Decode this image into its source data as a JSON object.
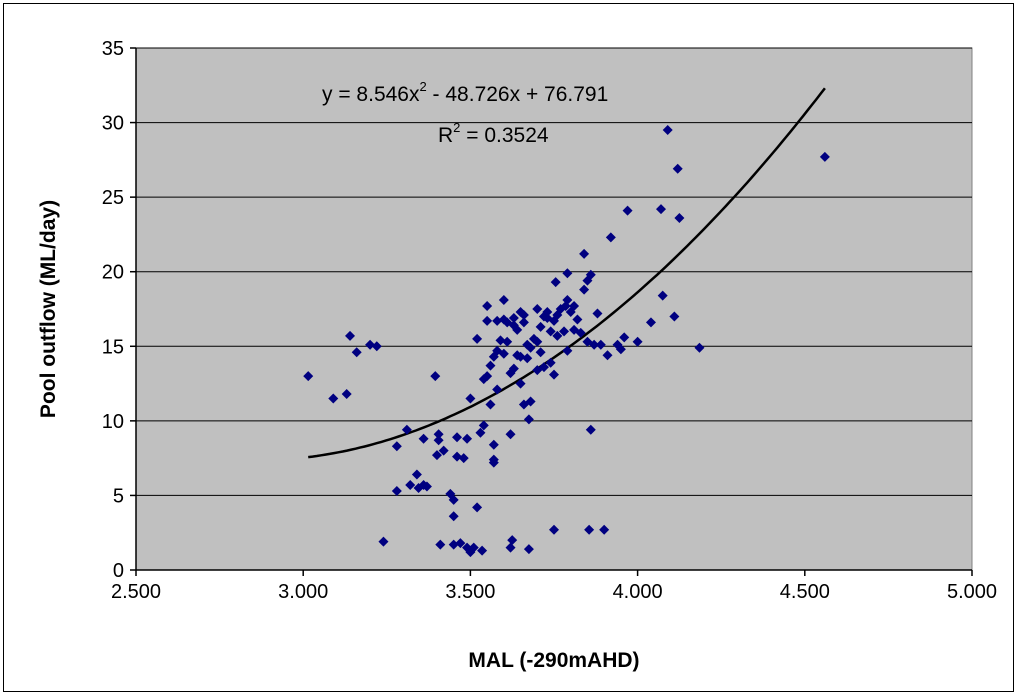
{
  "chart_data": {
    "type": "scatter",
    "title": "",
    "xlabel": "MAL (-290mAHD)",
    "ylabel": "Pool outflow (ML/day)",
    "xlim": [
      2.5,
      5.0
    ],
    "ylim": [
      0,
      35
    ],
    "x_ticks": [
      "2.500",
      "3.000",
      "3.500",
      "4.000",
      "4.500",
      "5.000"
    ],
    "y_ticks": [
      "0",
      "5",
      "10",
      "15",
      "20",
      "25",
      "30",
      "35"
    ],
    "grid": "horizontal",
    "plot_background": "#C0C0C0",
    "marker_color": "#000080",
    "trendline": {
      "type": "polynomial",
      "coefficients": [
        8.546,
        -48.726,
        76.791
      ],
      "x_range": [
        3.015,
        4.56
      ],
      "color": "#000000"
    },
    "annotations": {
      "equation_prefix": "y = 8.546x",
      "equation_exp": "2",
      "equation_suffix": " - 48.726x + 76.791",
      "r2_prefix": "R",
      "r2_exp": "2",
      "r2_suffix": " = 0.3524"
    },
    "points": [
      [
        3.015,
        13.0
      ],
      [
        3.09,
        11.5
      ],
      [
        3.13,
        11.8
      ],
      [
        3.14,
        15.7
      ],
      [
        3.16,
        14.6
      ],
      [
        3.2,
        15.1
      ],
      [
        3.22,
        15.0
      ],
      [
        3.24,
        1.9
      ],
      [
        3.28,
        5.3
      ],
      [
        3.28,
        8.3
      ],
      [
        3.31,
        9.4
      ],
      [
        3.32,
        5.7
      ],
      [
        3.34,
        6.4
      ],
      [
        3.345,
        5.5
      ],
      [
        3.36,
        5.7
      ],
      [
        3.36,
        8.8
      ],
      [
        3.37,
        5.6
      ],
      [
        3.395,
        13.0
      ],
      [
        3.4,
        7.7
      ],
      [
        3.405,
        8.7
      ],
      [
        3.405,
        9.1
      ],
      [
        3.41,
        1.7
      ],
      [
        3.42,
        8.0
      ],
      [
        3.44,
        5.1
      ],
      [
        3.45,
        3.6
      ],
      [
        3.45,
        4.7
      ],
      [
        3.45,
        1.7
      ],
      [
        3.46,
        7.6
      ],
      [
        3.46,
        8.9
      ],
      [
        3.47,
        1.8
      ],
      [
        3.48,
        7.5
      ],
      [
        3.49,
        8.8
      ],
      [
        3.49,
        1.5
      ],
      [
        3.5,
        1.2
      ],
      [
        3.5,
        11.5
      ],
      [
        3.51,
        1.5
      ],
      [
        3.52,
        4.2
      ],
      [
        3.52,
        15.5
      ],
      [
        3.53,
        9.2
      ],
      [
        3.535,
        1.3
      ],
      [
        3.54,
        12.8
      ],
      [
        3.54,
        9.7
      ],
      [
        3.55,
        13.0
      ],
      [
        3.55,
        16.7
      ],
      [
        3.55,
        17.7
      ],
      [
        3.56,
        11.1
      ],
      [
        3.56,
        13.7
      ],
      [
        3.57,
        14.3
      ],
      [
        3.57,
        8.4
      ],
      [
        3.57,
        7.4
      ],
      [
        3.57,
        7.2
      ],
      [
        3.58,
        14.7
      ],
      [
        3.58,
        12.1
      ],
      [
        3.58,
        16.7
      ],
      [
        3.59,
        15.4
      ],
      [
        3.6,
        14.5
      ],
      [
        3.6,
        16.8
      ],
      [
        3.6,
        18.1
      ],
      [
        3.61,
        15.3
      ],
      [
        3.61,
        16.6
      ],
      [
        3.62,
        13.2
      ],
      [
        3.62,
        9.1
      ],
      [
        3.62,
        1.5
      ],
      [
        3.625,
        2.0
      ],
      [
        3.63,
        13.5
      ],
      [
        3.63,
        16.4
      ],
      [
        3.63,
        16.9
      ],
      [
        3.64,
        14.4
      ],
      [
        3.64,
        16.1
      ],
      [
        3.65,
        14.3
      ],
      [
        3.65,
        17.3
      ],
      [
        3.65,
        12.5
      ],
      [
        3.66,
        11.1
      ],
      [
        3.66,
        16.6
      ],
      [
        3.66,
        17.1
      ],
      [
        3.67,
        15.1
      ],
      [
        3.67,
        14.2
      ],
      [
        3.675,
        10.1
      ],
      [
        3.675,
        1.4
      ],
      [
        3.68,
        11.3
      ],
      [
        3.68,
        14.9
      ],
      [
        3.69,
        15.5
      ],
      [
        3.7,
        17.5
      ],
      [
        3.7,
        13.4
      ],
      [
        3.7,
        15.3
      ],
      [
        3.71,
        16.3
      ],
      [
        3.71,
        14.6
      ],
      [
        3.72,
        17.0
      ],
      [
        3.72,
        13.6
      ],
      [
        3.73,
        16.9
      ],
      [
        3.73,
        17.3
      ],
      [
        3.74,
        16.0
      ],
      [
        3.74,
        13.9
      ],
      [
        3.75,
        16.7
      ],
      [
        3.75,
        13.1
      ],
      [
        3.75,
        2.7
      ],
      [
        3.755,
        19.3
      ],
      [
        3.76,
        15.7
      ],
      [
        3.76,
        17.1
      ],
      [
        3.77,
        17.5
      ],
      [
        3.78,
        16.0
      ],
      [
        3.785,
        17.7
      ],
      [
        3.79,
        18.1
      ],
      [
        3.79,
        19.9
      ],
      [
        3.79,
        14.7
      ],
      [
        3.8,
        17.3
      ],
      [
        3.81,
        17.7
      ],
      [
        3.81,
        16.1
      ],
      [
        3.82,
        16.8
      ],
      [
        3.83,
        15.9
      ],
      [
        3.84,
        18.8
      ],
      [
        3.84,
        21.2
      ],
      [
        3.85,
        15.3
      ],
      [
        3.85,
        19.4
      ],
      [
        3.855,
        2.7
      ],
      [
        3.86,
        19.8
      ],
      [
        3.86,
        9.4
      ],
      [
        3.87,
        15.1
      ],
      [
        3.88,
        17.2
      ],
      [
        3.89,
        15.1
      ],
      [
        3.9,
        2.7
      ],
      [
        3.91,
        14.4
      ],
      [
        3.92,
        22.3
      ],
      [
        3.94,
        15.1
      ],
      [
        3.95,
        14.8
      ],
      [
        3.96,
        15.6
      ],
      [
        3.97,
        24.1
      ],
      [
        4.0,
        15.3
      ],
      [
        4.04,
        16.6
      ],
      [
        4.07,
        24.2
      ],
      [
        4.075,
        18.4
      ],
      [
        4.09,
        29.5
      ],
      [
        4.11,
        17.0
      ],
      [
        4.12,
        26.9
      ],
      [
        4.125,
        23.6
      ],
      [
        4.185,
        14.9
      ],
      [
        4.56,
        27.7
      ]
    ]
  }
}
